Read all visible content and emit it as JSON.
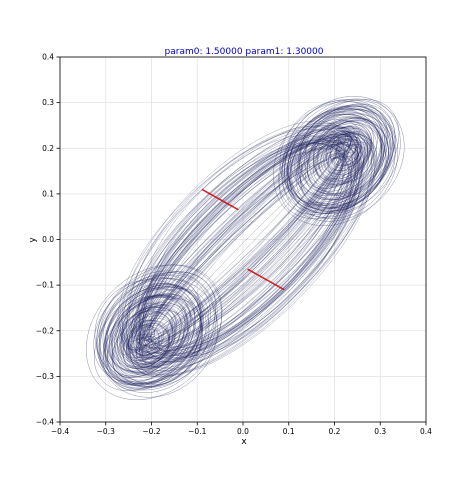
{
  "chart_data": {
    "type": "line",
    "title": "param0: 1.50000   param1: 1.30000",
    "title_color": "#0000cc",
    "xlabel": "x",
    "ylabel": "y",
    "xlim": [
      -0.4,
      0.4
    ],
    "ylim": [
      -0.4,
      0.4
    ],
    "x_ticks": [
      "−0.4",
      "−0.3",
      "−0.2",
      "−0.1",
      "0.0",
      "0.1",
      "0.2",
      "0.3",
      "0.4"
    ],
    "y_ticks": [
      "−0.4",
      "−0.3",
      "−0.2",
      "−0.1",
      "0.0",
      "0.1",
      "0.2",
      "0.3",
      "0.4"
    ],
    "x_tick_values": [
      -0.4,
      -0.3,
      -0.2,
      -0.1,
      0.0,
      0.1,
      0.2,
      0.3,
      0.4
    ],
    "y_tick_values": [
      -0.4,
      -0.3,
      -0.2,
      -0.1,
      0.0,
      0.1,
      0.2,
      0.3,
      0.4
    ],
    "grid": true,
    "series": [
      {
        "color": "#1a1f5c",
        "description_points": "trajectory of attractor (two lobes centered near (-0.22,-0.23) and (0.23,0.2))",
        "lobe_centers": [
          [
            -0.22,
            -0.23
          ],
          [
            0.23,
            0.2
          ]
        ]
      },
      {
        "color": "#cc0000",
        "segments": [
          [
            [
              -0.09,
              0.11
            ],
            [
              -0.01,
              0.065
            ]
          ],
          [
            [
              0.01,
              -0.065
            ],
            [
              0.09,
              -0.11
            ]
          ]
        ]
      }
    ]
  }
}
